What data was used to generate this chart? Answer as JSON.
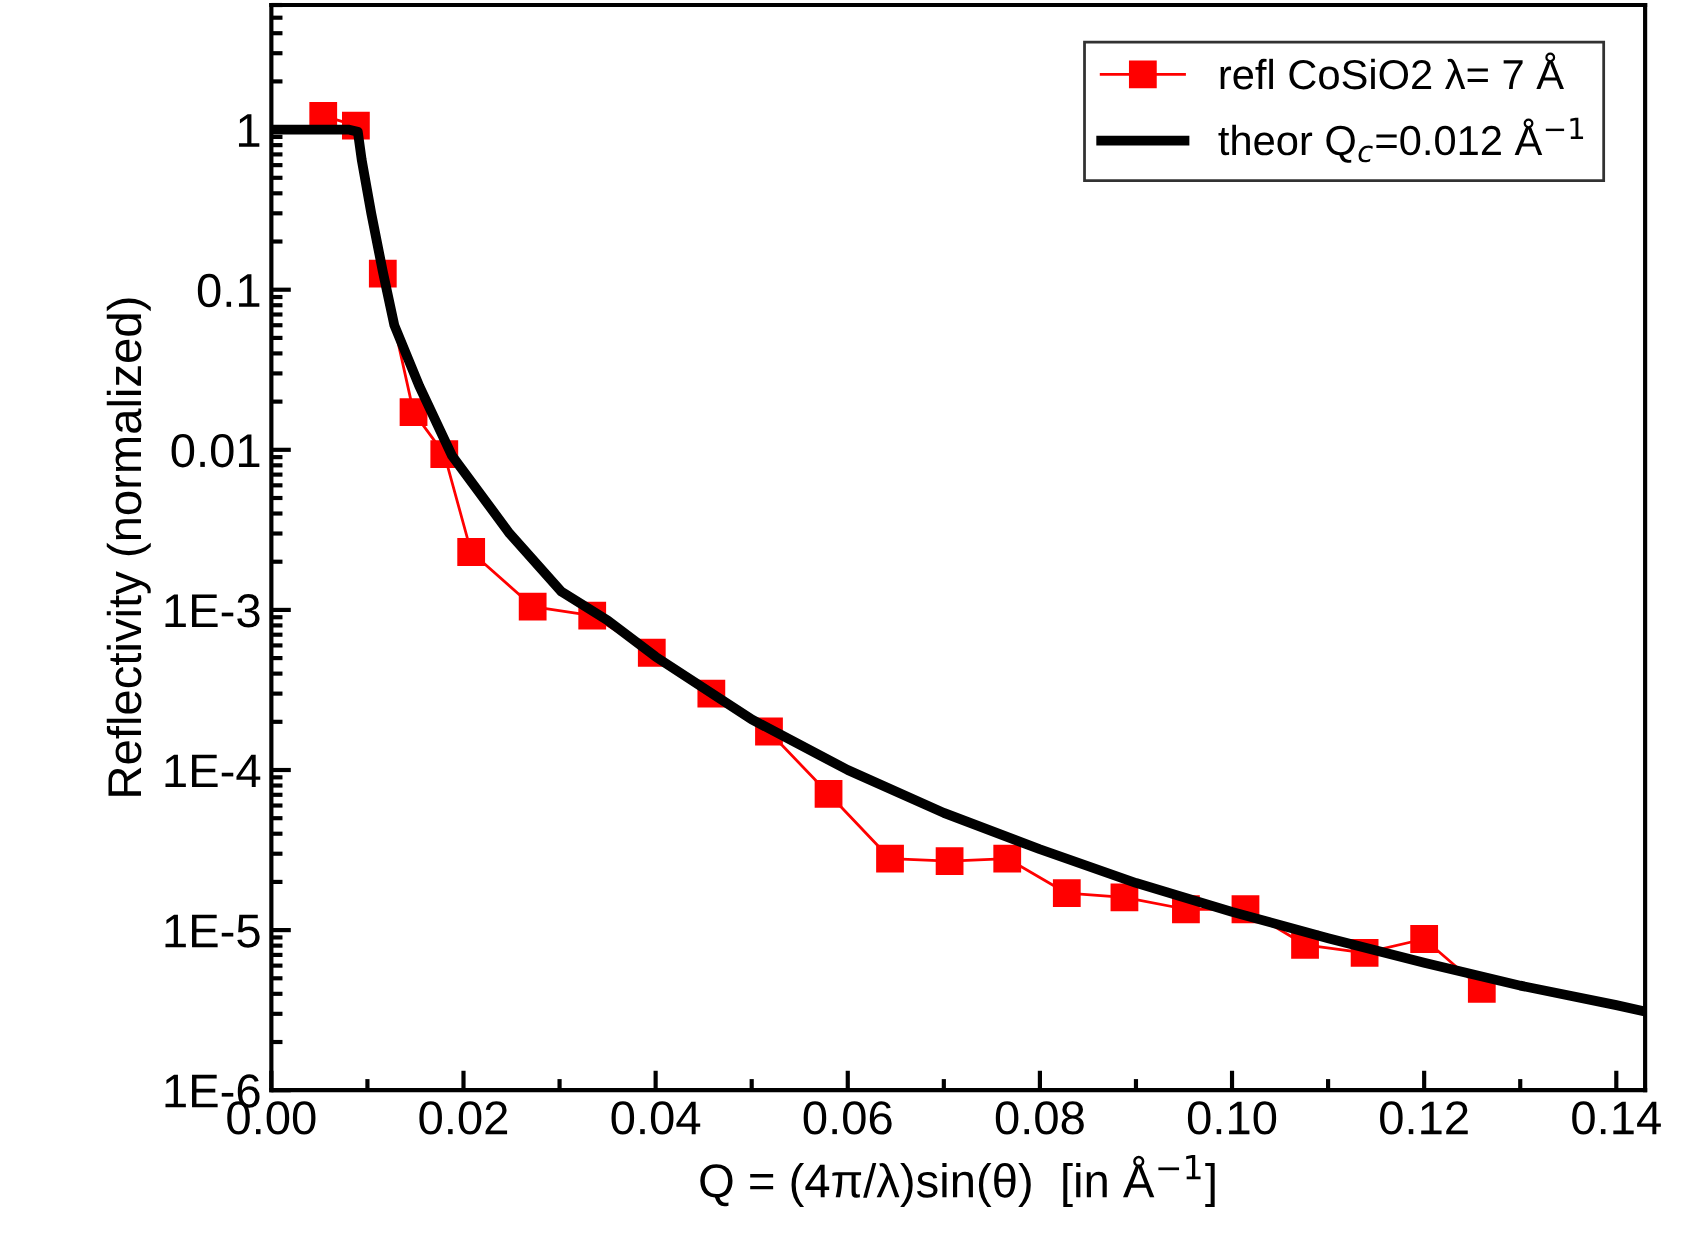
{
  "chart_data": {
    "type": "line",
    "xlabel": "Q = (4π/λ)sin(θ)  [in Å$^{−1}$]",
    "ylabel": "Reflectivity (normalized)",
    "log": "y",
    "xlim": [
      0,
      0.143
    ],
    "xticks": [
      {
        "value": 0,
        "label": "0.00"
      },
      {
        "value": 0.02,
        "label": "0.02"
      },
      {
        "value": 0.04,
        "label": "0.04"
      },
      {
        "value": 0.06,
        "label": "0.06"
      },
      {
        "value": 0.08,
        "label": "0.08"
      },
      {
        "value": 0.1,
        "label": "0.10"
      },
      {
        "value": 0.12,
        "label": "0.12"
      },
      {
        "value": 0.14,
        "label": "0.14"
      }
    ],
    "ylim": [
      1e-06,
      6
    ],
    "yticks": [
      {
        "value": 1,
        "label": "1"
      },
      {
        "value": 0.1,
        "label": "0.1"
      },
      {
        "value": 0.01,
        "label": "0.01"
      },
      {
        "value": 0.001,
        "label": "1E-3"
      },
      {
        "value": 0.0001,
        "label": "1E-4"
      },
      {
        "value": 1e-05,
        "label": "1E-5"
      },
      {
        "value": 1e-06,
        "label": "1E-6"
      }
    ],
    "grid": false,
    "legend": "top right",
    "series": [
      {
        "name": "refl CoSiO2 λ= 7 Å",
        "color": "#ff0000",
        "marker": "square",
        "x": [
          0.0054,
          0.0088,
          0.0116,
          0.0148,
          0.018,
          0.0208,
          0.0272,
          0.0334,
          0.0396,
          0.0458,
          0.0518,
          0.058,
          0.0644,
          0.0706,
          0.0766,
          0.0828,
          0.0888,
          0.0952,
          0.1014,
          0.1076,
          0.1138,
          0.12,
          0.126
        ],
        "values": [
          1.22,
          1.06,
          0.126,
          0.0172,
          0.0094,
          0.0023,
          0.00105,
          0.00092,
          0.00054,
          0.0003,
          0.000174,
          7.1e-05,
          2.8e-05,
          2.7e-05,
          2.8e-05,
          1.7e-05,
          1.6e-05,
          1.35e-05,
          1.35e-05,
          8.1e-06,
          7.2e-06,
          8.8e-06,
          4.3e-06
        ]
      },
      {
        "name": "theor Q$_{c}$=0.012 Å$^{−1}$",
        "color": "#000000",
        "marker": "none",
        "x": [
          0,
          0.004,
          0.008,
          0.009,
          0.0094,
          0.0104,
          0.0116,
          0.0128,
          0.0154,
          0.0188,
          0.0248,
          0.0302,
          0.035,
          0.04,
          0.05,
          0.06,
          0.07,
          0.08,
          0.09,
          0.1,
          0.11,
          0.12,
          0.13,
          0.14,
          0.143
        ],
        "values": [
          1,
          1,
          1,
          0.97,
          0.65,
          0.3,
          0.13,
          0.06,
          0.025,
          0.0092,
          0.003,
          0.0013,
          0.00086,
          0.00051,
          0.000207,
          0.0001,
          5.4e-05,
          3.2e-05,
          1.97e-05,
          1.3e-05,
          8.9e-06,
          6.25e-06,
          4.5e-06,
          3.4e-06,
          3.1e-06
        ]
      }
    ]
  }
}
